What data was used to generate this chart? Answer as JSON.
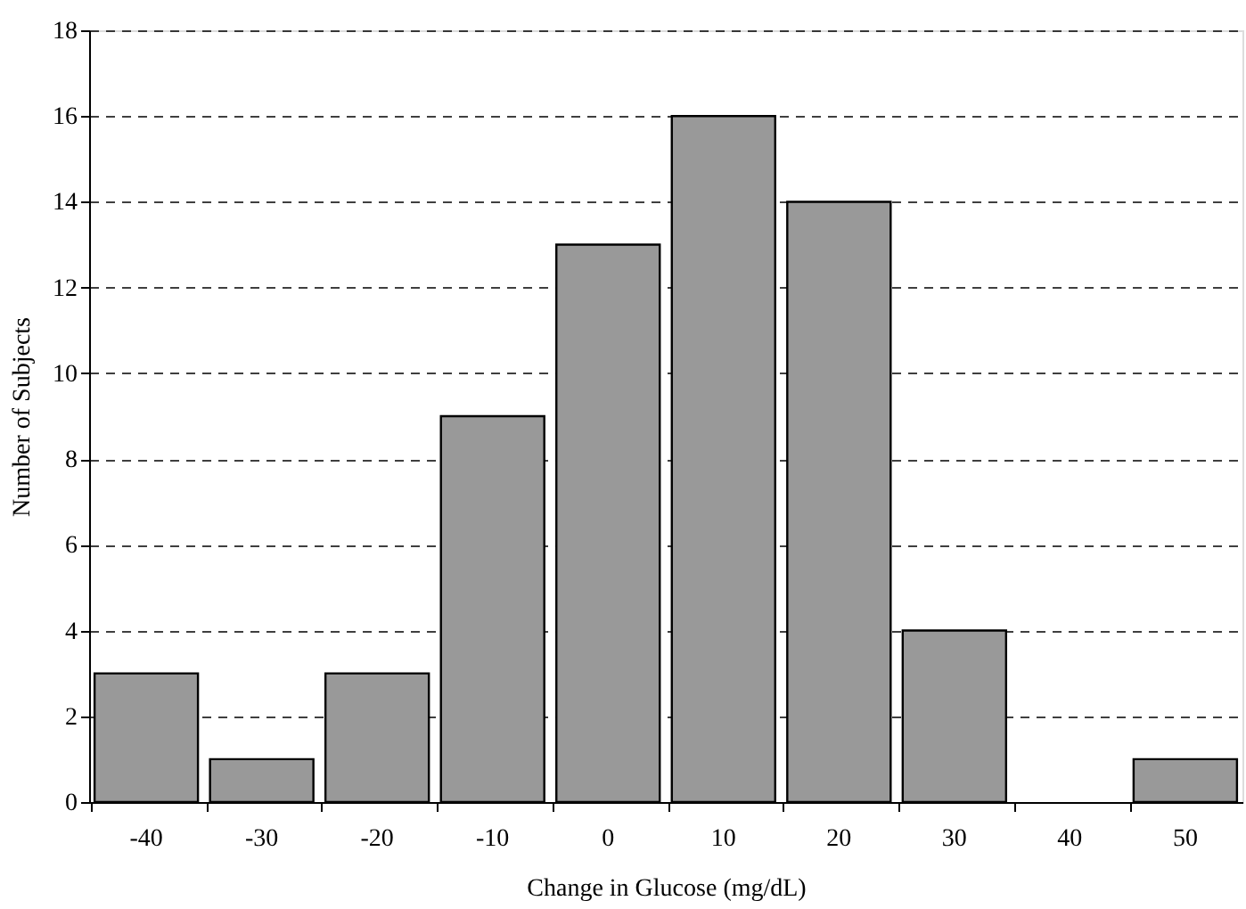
{
  "chart_data": {
    "type": "bar",
    "xlabel": "Change in Glucose (mg/dL)",
    "ylabel": "Number of Subjects",
    "categories": [
      "-40",
      "-30",
      "-20",
      "-10",
      "0",
      "10",
      "20",
      "30",
      "40",
      "50"
    ],
    "values": [
      3,
      1,
      3,
      9,
      13,
      16,
      14,
      4,
      0,
      1
    ],
    "color": "#999999",
    "ylim": [
      0,
      18
    ],
    "yticks": [
      0,
      2,
      4,
      6,
      8,
      10,
      12,
      14,
      16,
      18
    ],
    "grid": "y"
  }
}
